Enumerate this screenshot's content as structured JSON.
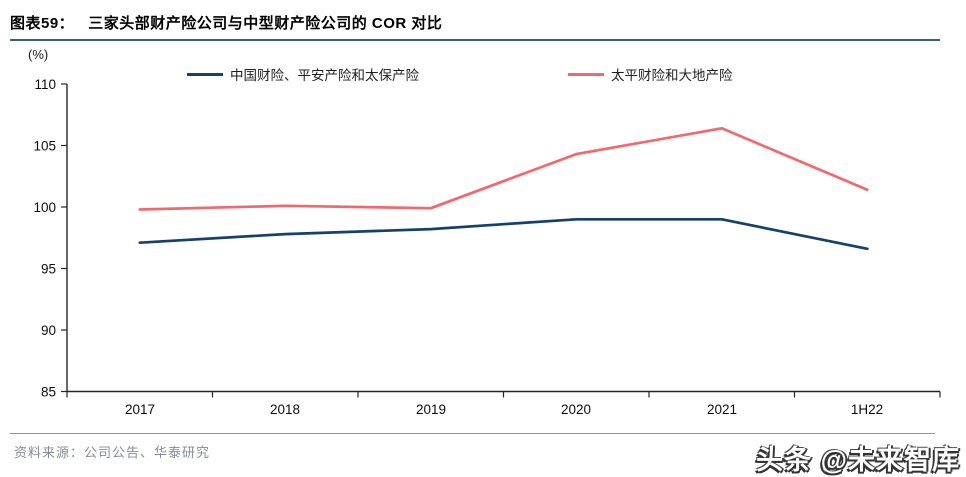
{
  "header": {
    "figure_label": "图表59：",
    "title": "三家头部财产险公司与中型财产险公司的 COR 对比"
  },
  "chart_data": {
    "type": "line",
    "unit_label": "(%)",
    "categories": [
      "2017",
      "2018",
      "2019",
      "2020",
      "2021",
      "1H22"
    ],
    "series": [
      {
        "name": "中国财险、平安产险和太保产险",
        "color": "#17406E",
        "values": [
          97.1,
          97.8,
          98.2,
          99.0,
          99.0,
          96.6
        ]
      },
      {
        "name": "太平财险和大地产险",
        "color": "#F4686D",
        "values": [
          99.8,
          100.1,
          99.9,
          104.3,
          106.4,
          101.4
        ]
      }
    ],
    "ylim": [
      85,
      110
    ],
    "ytick_step": 5,
    "ytick_labels": [
      "110",
      "105",
      "100",
      "95",
      "90",
      "85"
    ],
    "grid": false,
    "legend_position": "top"
  },
  "footer": {
    "source": "资料来源：公司公告、华泰研究",
    "watermark": "头条 @未来智库"
  },
  "colors": {
    "title_rule": "#3A5F85",
    "source_rule": "#8796A4",
    "axis": "#262626"
  }
}
